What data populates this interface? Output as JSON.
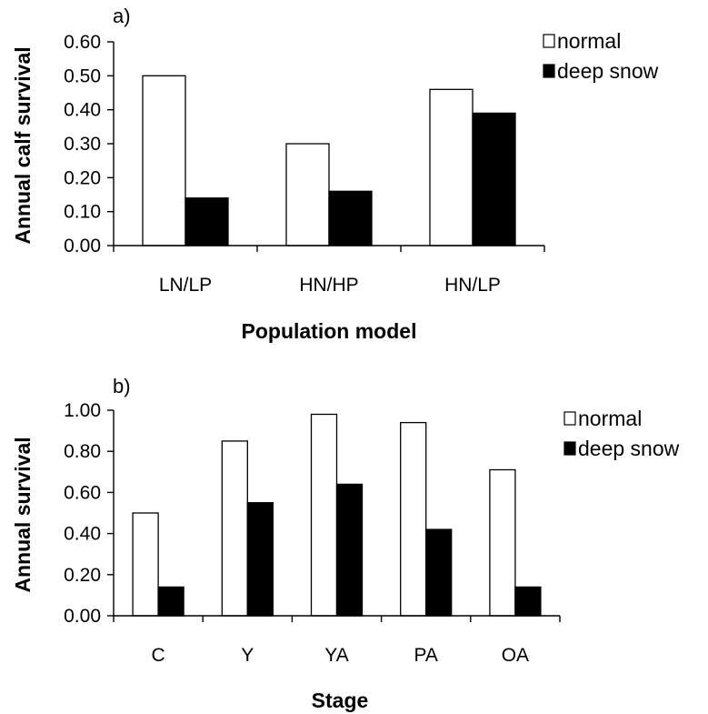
{
  "chart_data": [
    {
      "type": "bar",
      "panel_label": "a)",
      "xlabel": "Population model",
      "ylabel": "Annual calf survival",
      "ylim": [
        0,
        0.6
      ],
      "yticks": [
        "0.00",
        "0.10",
        "0.20",
        "0.30",
        "0.40",
        "0.50",
        "0.60"
      ],
      "categories": [
        "LN/LP",
        "HN/HP",
        "HN/LP"
      ],
      "series": [
        {
          "name": "normal",
          "color": "#ffffff",
          "values": [
            0.5,
            0.3,
            0.46
          ]
        },
        {
          "name": "deep snow",
          "color": "#000000",
          "values": [
            0.14,
            0.16,
            0.39
          ]
        }
      ],
      "legend": "top-right",
      "grid": false
    },
    {
      "type": "bar",
      "panel_label": "b)",
      "xlabel": "Stage",
      "ylabel": "Annual survival",
      "ylim": [
        0,
        1.0
      ],
      "yticks": [
        "0.00",
        "0.20",
        "0.40",
        "0.60",
        "0.80",
        "1.00"
      ],
      "categories": [
        "C",
        "Y",
        "YA",
        "PA",
        "OA"
      ],
      "series": [
        {
          "name": "normal",
          "color": "#ffffff",
          "values": [
            0.5,
            0.85,
            0.98,
            0.94,
            0.71
          ]
        },
        {
          "name": "deep snow",
          "color": "#000000",
          "values": [
            0.14,
            0.55,
            0.64,
            0.42,
            0.14
          ]
        }
      ],
      "legend": "top-right",
      "grid": false
    }
  ]
}
